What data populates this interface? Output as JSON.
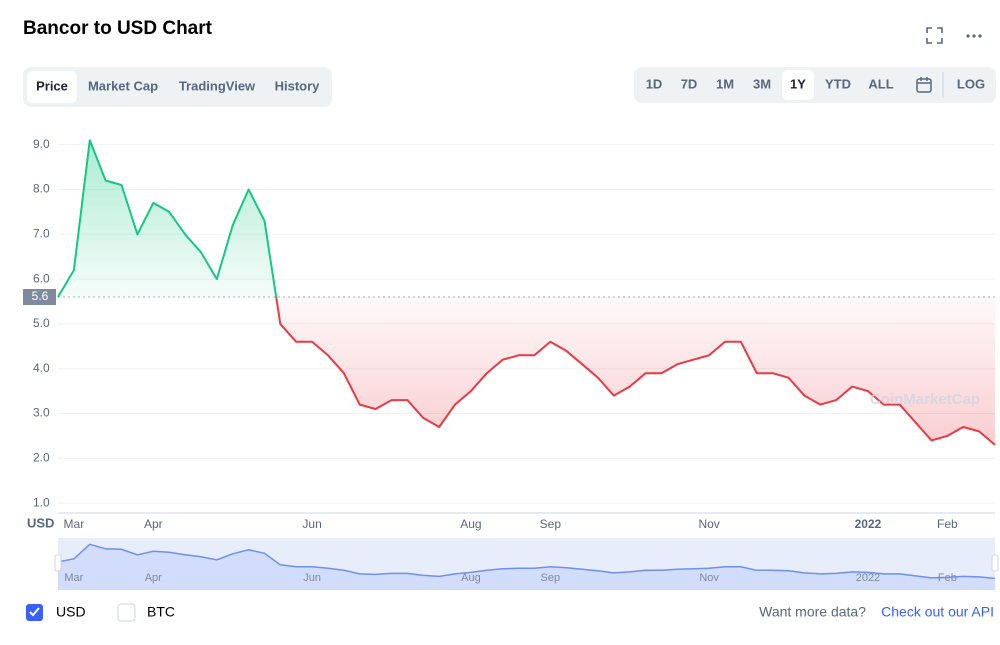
{
  "header": {
    "title": "Bancor to USD Chart"
  },
  "tabs": [
    "Price",
    "Market Cap",
    "TradingView",
    "History"
  ],
  "ranges": [
    "1D",
    "7D",
    "1M",
    "3M",
    "1Y",
    "YTD",
    "ALL"
  ],
  "log_label": "LOG",
  "chart_data": {
    "type": "line",
    "categories": [
      null,
      "Mar",
      null,
      null,
      null,
      null,
      "Apr",
      null,
      null,
      null,
      null,
      null,
      null,
      null,
      null,
      null,
      "Jun",
      null,
      null,
      null,
      null,
      null,
      null,
      null,
      null,
      null,
      "Aug",
      null,
      null,
      null,
      null,
      "Sep",
      null,
      null,
      null,
      null,
      null,
      null,
      null,
      null,
      null,
      "Nov",
      null,
      null,
      null,
      null,
      null,
      null,
      null,
      null,
      null,
      "2022",
      null,
      null,
      null,
      null,
      "Feb",
      null,
      null,
      null
    ],
    "series": [
      {
        "name": "USD",
        "values": [
          5.6,
          6.2,
          9.1,
          8.2,
          8.1,
          7.0,
          7.7,
          7.5,
          7.0,
          6.6,
          6.0,
          7.2,
          8.0,
          7.3,
          5.0,
          4.6,
          4.6,
          4.3,
          3.9,
          3.2,
          3.1,
          3.3,
          3.3,
          2.9,
          2.7,
          3.2,
          3.5,
          3.9,
          4.2,
          4.3,
          4.3,
          4.6,
          4.4,
          4.1,
          3.8,
          3.4,
          3.6,
          3.9,
          3.9,
          4.1,
          4.2,
          4.3,
          4.6,
          4.6,
          3.9,
          3.9,
          3.8,
          3.4,
          3.2,
          3.3,
          3.6,
          3.5,
          3.2,
          3.2,
          2.8,
          2.4,
          2.5,
          2.7,
          2.6,
          2.3
        ]
      }
    ],
    "reference": 5.6,
    "up_color": "#16c784",
    "down_color": "#ea3943",
    "ylim": [
      0.78,
      9.55
    ],
    "yticks": [
      {
        "value": 1,
        "label": "1.0"
      },
      {
        "value": 2,
        "label": "2.0"
      },
      {
        "value": 3,
        "label": "3.0"
      },
      {
        "value": 4,
        "label": "4.0"
      },
      {
        "value": 5,
        "label": "5.0"
      },
      {
        "value": 6,
        "label": "6.0"
      },
      {
        "value": 7,
        "label": "7.0"
      },
      {
        "value": 8,
        "label": "8.0"
      },
      {
        "value": 9,
        "label": "9.0"
      }
    ],
    "y_unit": "USD",
    "grid": true,
    "watermark": "CoinMarketCap",
    "other_option": "BTC"
  },
  "footer": {
    "prompt": "Want more data?",
    "link": "Check out our API"
  }
}
